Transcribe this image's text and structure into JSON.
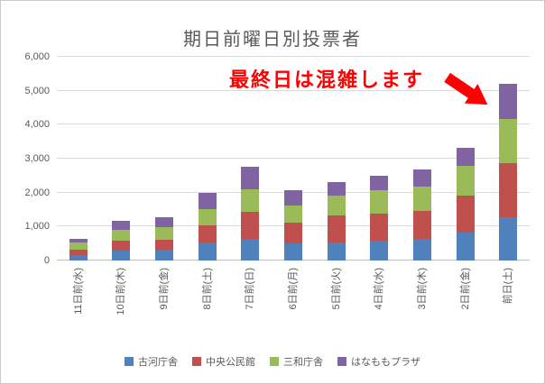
{
  "title": "期日前曜日別投票者",
  "annotation": {
    "text": "最終日は混雑します",
    "color": "#FF0000",
    "arrow_color": "#FF0000"
  },
  "chart_data": {
    "type": "bar",
    "stacked": true,
    "title": "期日前曜日別投票者",
    "categories": [
      "11日前(水)",
      "10日前(木)",
      "9日前(金)",
      "8日前(土)",
      "7日前(日)",
      "6日前(月)",
      "5日前(火)",
      "4日前(水)",
      "3日前(木)",
      "2日前(金)",
      "前日(土)"
    ],
    "series": [
      {
        "name": "古河庁舎",
        "color": "#4F81BD",
        "values": [
          160,
          290,
          330,
          520,
          640,
          515,
          530,
          595,
          650,
          835,
          1270
        ]
      },
      {
        "name": "中央公民館",
        "color": "#C0504D",
        "values": [
          150,
          290,
          280,
          525,
          805,
          590,
          785,
          780,
          815,
          1090,
          1600
        ]
      },
      {
        "name": "三和庁舎",
        "color": "#9BBB59",
        "values": [
          220,
          320,
          360,
          480,
          655,
          515,
          610,
          690,
          705,
          855,
          1310
        ]
      },
      {
        "name": "はなももプラザ",
        "color": "#8064A2",
        "values": [
          120,
          260,
          315,
          475,
          650,
          440,
          375,
          435,
          510,
          545,
          1020
        ]
      }
    ],
    "xlabel": "",
    "ylabel": "",
    "ylim": [
      0,
      6000
    ],
    "ytick_interval": 1000,
    "ytick_labels": [
      "0",
      "1,000",
      "2,000",
      "3,000",
      "4,000",
      "5,000",
      "6,000"
    ],
    "grid": true,
    "legend_position": "bottom",
    "text_color": "#595959",
    "gridline_color": "#D9D9D9"
  }
}
